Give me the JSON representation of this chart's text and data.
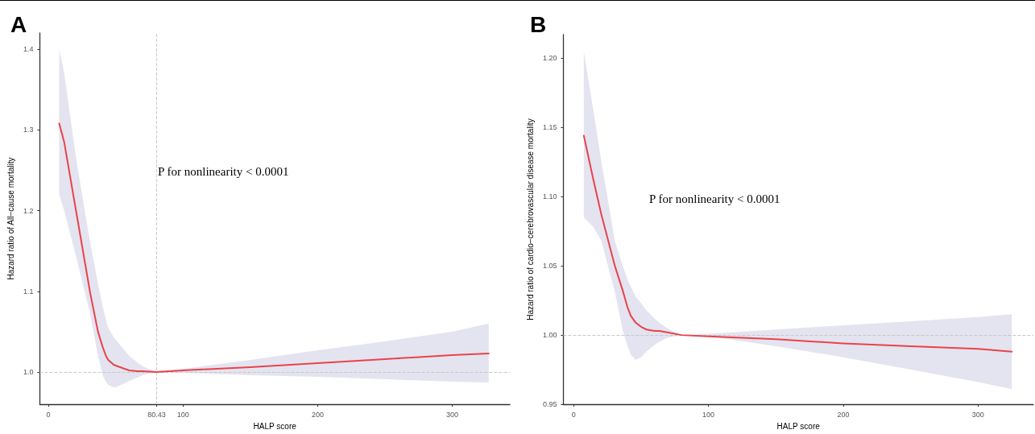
{
  "chart_data": [
    {
      "type": "line",
      "title": "A",
      "xlabel": "HALP score",
      "ylabel": "Hazard ratio of All−cause mortality",
      "xlim": [
        -6.4,
        342.7
      ],
      "ylim": [
        0.96,
        1.42
      ],
      "xticks": [
        0,
        80.43,
        100,
        200,
        300
      ],
      "yticks": [
        {
          "value": 1,
          "label": "1.0"
        },
        1.1,
        1.2,
        1.3,
        1.4
      ],
      "grid": false,
      "marker": "none",
      "line_style": "solid",
      "annotations": [
        "P for nonlinearity < 0.0001"
      ],
      "ref_lines": [
        {
          "axis": "x",
          "value": 80.43,
          "color": "#c8c8c8",
          "line_style": "dashed"
        },
        {
          "axis": "y",
          "value": 1,
          "color": "#c8c8c8",
          "line_style": "dashed"
        }
      ],
      "series": [
        {
          "color": "#e8434b",
          "x": [
            8,
            11.7,
            21,
            31,
            36.8,
            40.5,
            42.7,
            44.4,
            48.5,
            50,
            56.5,
            60,
            66,
            70,
            80.43,
            100,
            150,
            200,
            250,
            300,
            327
          ],
          "values": [
            1.308,
            1.285,
            1.195,
            1.098,
            1.05,
            1.03,
            1.02,
            1.015,
            1.009,
            1.008,
            1.004,
            1.002,
            1.001,
            1.001,
            1.0,
            1.002,
            1.006,
            1.011,
            1.016,
            1.021,
            1.023
          ],
          "upper": [
            1.4,
            1.37,
            1.26,
            1.16,
            1.11,
            1.08,
            1.065,
            1.055,
            1.043,
            1.04,
            1.027,
            1.02,
            1.012,
            1.007,
            1.0,
            1.004,
            1.015,
            1.027,
            1.038,
            1.05,
            1.06
          ],
          "lower": [
            1.22,
            1.2,
            1.14,
            1.072,
            1.02,
            0.995,
            0.988,
            0.984,
            0.981,
            0.981,
            0.986,
            0.989,
            0.993,
            0.996,
            1.0,
            0.999,
            0.996,
            0.994,
            0.991,
            0.988,
            0.987
          ]
        }
      ]
    },
    {
      "type": "line",
      "title": "B",
      "xlabel": "HALP score",
      "ylabel": "Hazard ratio of cardio−cerebrovascular disease mortality",
      "xlim": [
        -7.6,
        341
      ],
      "ylim": [
        0.95,
        1.217
      ],
      "xticks": [
        0,
        100,
        200,
        300
      ],
      "yticks": [
        {
          "value": 0.95,
          "label": "0.95"
        },
        {
          "value": 1,
          "label": "1.00"
        },
        1.05,
        {
          "value": 1.1,
          "label": "1.10"
        },
        1.15,
        {
          "value": 1.2,
          "label": "1.20"
        }
      ],
      "grid": false,
      "marker": "none",
      "line_style": "solid",
      "annotations": [
        "P for nonlinearity < 0.0001"
      ],
      "ref_lines": [
        {
          "axis": "y",
          "value": 1,
          "color": "#c8c8c8",
          "line_style": "dashed"
        }
      ],
      "series": [
        {
          "color": "#e8434b",
          "x": [
            7.6,
            14.7,
            20.6,
            30.6,
            36.5,
            40,
            42.4,
            46,
            50,
            54,
            60,
            63.5,
            69.4,
            80,
            100,
            150,
            200,
            250,
            300,
            325
          ],
          "values": [
            1.144,
            1.112,
            1.087,
            1.05,
            1.032,
            1.02,
            1.014,
            1.009,
            1.006,
            1.004,
            1.003,
            1.003,
            1.002,
            1.0,
            0.999,
            0.997,
            0.994,
            0.992,
            0.99,
            0.988
          ],
          "upper": [
            1.205,
            1.162,
            1.125,
            1.068,
            1.05,
            1.04,
            1.035,
            1.028,
            1.023,
            1.018,
            1.012,
            1.009,
            1.005,
            1.0,
            1.001,
            1.004,
            1.007,
            1.01,
            1.013,
            1.015
          ],
          "lower": [
            1.085,
            1.078,
            1.068,
            1.031,
            1.003,
            0.992,
            0.986,
            0.982,
            0.984,
            0.988,
            0.993,
            0.995,
            0.998,
            1.0,
            0.999,
            0.992,
            0.984,
            0.975,
            0.966,
            0.961
          ]
        }
      ]
    }
  ]
}
